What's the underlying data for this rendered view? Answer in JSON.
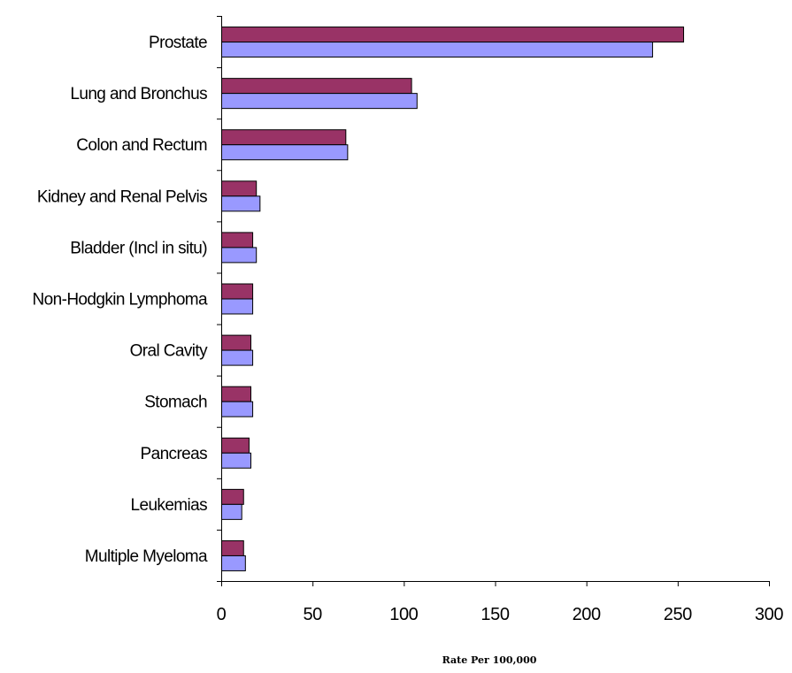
{
  "chart_data": {
    "type": "bar",
    "orientation": "horizontal",
    "categories": [
      "Prostate",
      "Lung and Bronchus",
      "Colon and Rectum",
      "Kidney and Renal Pelvis",
      "Bladder (Incl in situ)",
      "Non-Hodgkin Lymphoma",
      "Oral Cavity",
      "Stomach",
      "Pancreas",
      "Leukemias",
      "Multiple Myeloma"
    ],
    "series": [
      {
        "color": "#993366",
        "values": [
          253,
          104,
          68,
          19,
          17,
          17,
          16,
          16,
          15,
          12,
          12
        ]
      },
      {
        "color": "#9999ff",
        "values": [
          236,
          107,
          69,
          21,
          19,
          17,
          17,
          17,
          16,
          11,
          13
        ]
      }
    ],
    "xlabel": "Rate Per 100,000",
    "ylabel": "",
    "xlim": [
      0,
      300
    ],
    "xticks": [
      "0",
      "50",
      "100",
      "150",
      "200",
      "250",
      "300"
    ],
    "grid": false,
    "legend": "none"
  }
}
